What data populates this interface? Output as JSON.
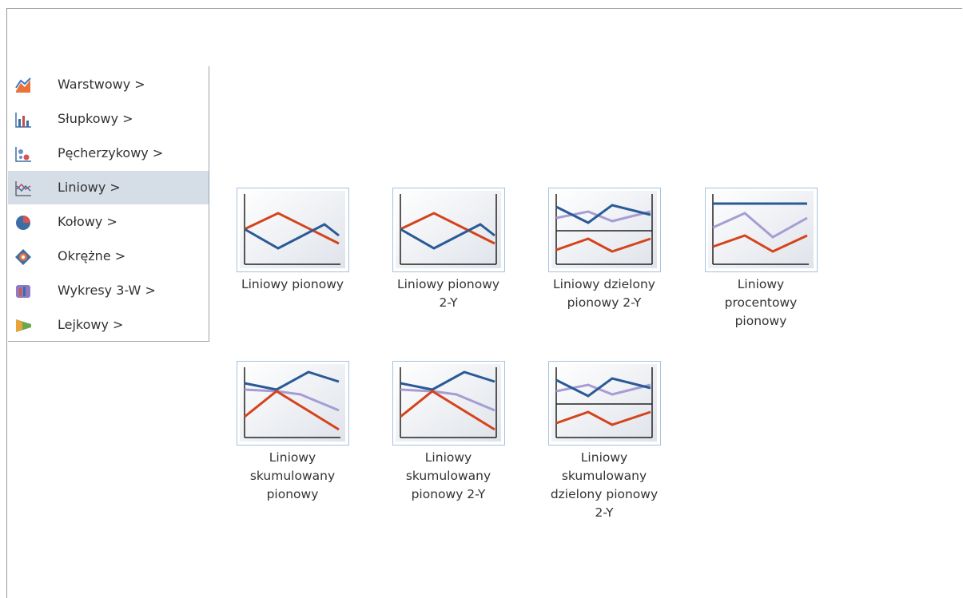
{
  "menu": {
    "items": [
      {
        "label": "Warstwowy >"
      },
      {
        "label": "Słupkowy >"
      },
      {
        "label": "Pęcherzykowy >"
      },
      {
        "label": "Liniowy >"
      },
      {
        "label": "Kołowy >"
      },
      {
        "label": "Okrężne >"
      },
      {
        "label": "Wykresy 3-W >"
      },
      {
        "label": "Lejkowy >"
      }
    ]
  },
  "gallery": {
    "items": [
      {
        "lines": [
          "Liniowy pionowy"
        ]
      },
      {
        "lines": [
          "Liniowy pionowy",
          "2-Y"
        ]
      },
      {
        "lines": [
          "Liniowy dzielony",
          "pionowy 2-Y"
        ]
      },
      {
        "lines": [
          "Liniowy",
          "procentowy",
          "pionowy"
        ]
      },
      {
        "lines": [
          "Liniowy",
          "skumulowany",
          "pionowy"
        ]
      },
      {
        "lines": [
          "Liniowy",
          "skumulowany",
          "pionowy 2-Y"
        ]
      },
      {
        "lines": [
          "Liniowy",
          "skumulowany",
          "dzielony pionowy",
          "2-Y"
        ]
      }
    ]
  }
}
